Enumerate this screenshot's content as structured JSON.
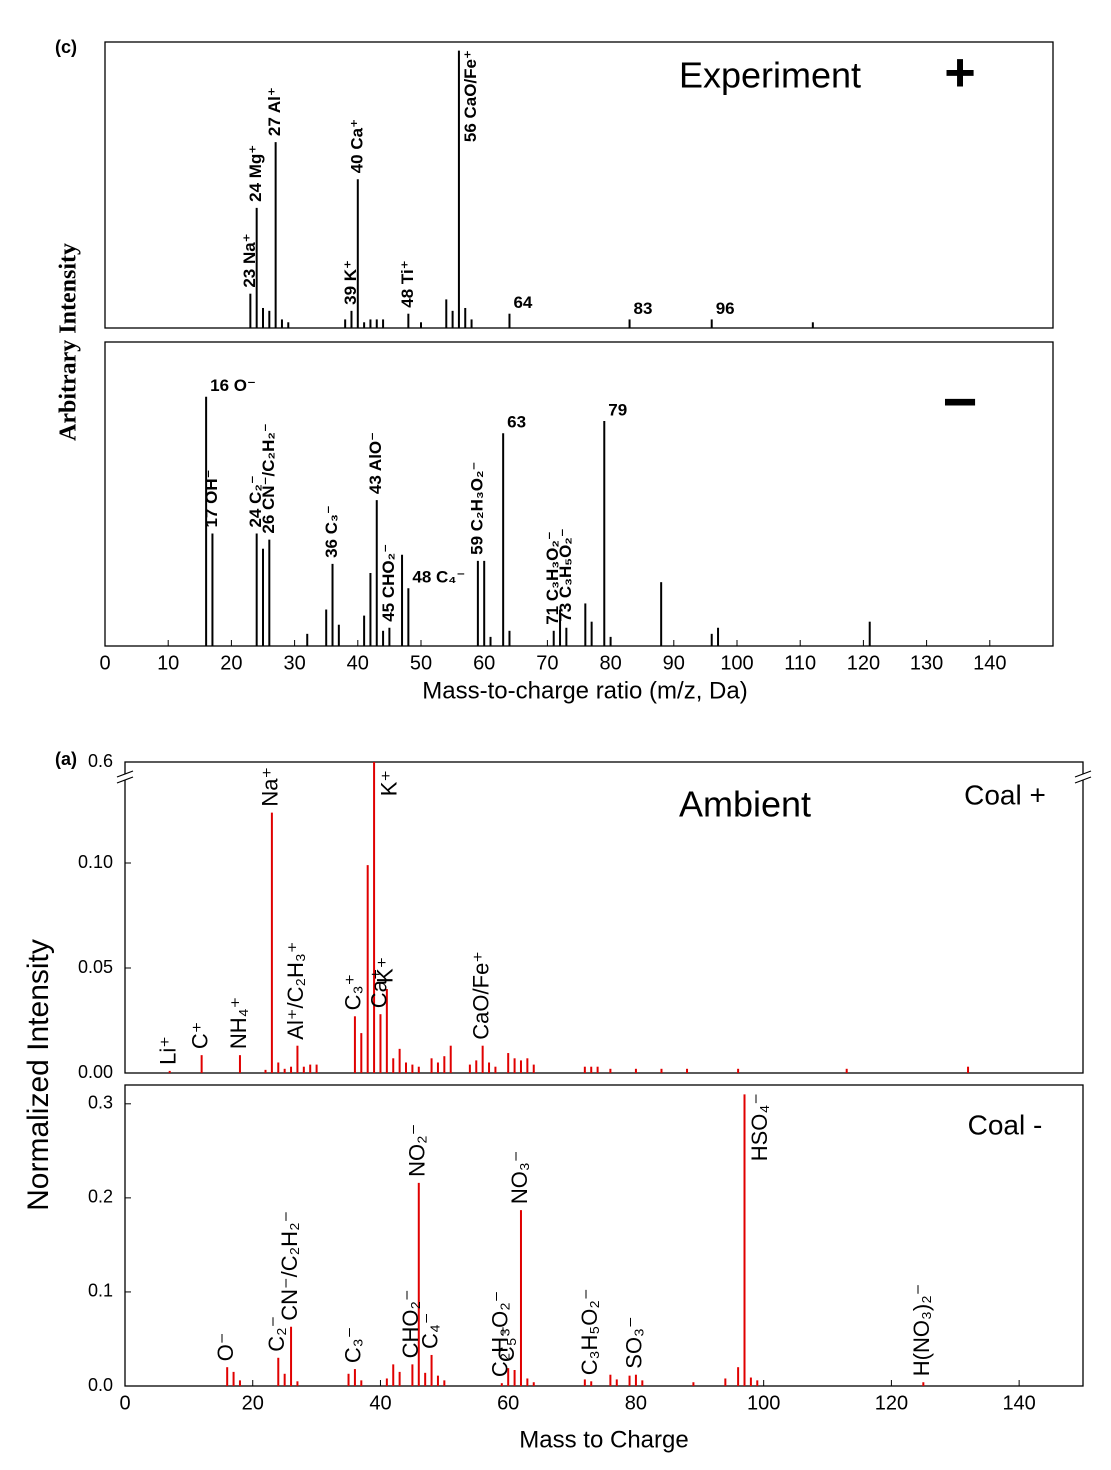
{
  "chart_data": [
    {
      "type": "stem",
      "panel_label": "(c)",
      "title": "Experiment",
      "polarity": "+",
      "ylabel": "Arbitrary Intensity",
      "color": "#000000",
      "xlim": [
        0,
        150
      ],
      "ylim": [
        0,
        100
      ],
      "x": [
        23,
        24,
        25,
        26,
        27,
        28,
        29,
        38,
        39,
        40,
        41,
        42,
        43,
        44,
        48,
        50,
        54,
        55,
        56,
        57,
        58,
        64,
        83,
        96,
        112
      ],
      "values": [
        12,
        42,
        7,
        6,
        65,
        3,
        2,
        3,
        6,
        52,
        2,
        3,
        3,
        3,
        5,
        2,
        10,
        6,
        97,
        7,
        3,
        5,
        3,
        3,
        2
      ],
      "annotations": [
        {
          "text": "23 Na⁺",
          "x": 23,
          "vertical": true
        },
        {
          "text": "24 Mg⁺",
          "x": 24,
          "vertical": true
        },
        {
          "text": "27 Al⁺",
          "x": 27,
          "vertical": true
        },
        {
          "text": "39 K⁺",
          "x": 39,
          "vertical": true
        },
        {
          "text": "40 Ca⁺",
          "x": 40,
          "vertical": true
        },
        {
          "text": "48 Ti⁺",
          "x": 48,
          "vertical": true
        },
        {
          "text": "56 CaO/Fe⁺",
          "x": 56,
          "vertical": true
        },
        {
          "text": "64",
          "x": 64,
          "vertical": false
        },
        {
          "text": "83",
          "x": 83,
          "vertical": false
        },
        {
          "text": "96",
          "x": 96,
          "vertical": false
        }
      ]
    },
    {
      "type": "stem",
      "polarity": "−",
      "xlabel": "Mass-to-charge ratio (m/z, Da)",
      "color": "#000000",
      "xlim": [
        0,
        150
      ],
      "ylim": [
        0,
        100
      ],
      "xticks": [
        0,
        10,
        20,
        30,
        40,
        50,
        60,
        70,
        80,
        90,
        100,
        110,
        120,
        130,
        140
      ],
      "x": [
        16,
        17,
        24,
        25,
        26,
        32,
        35,
        36,
        37,
        41,
        42,
        43,
        44,
        45,
        47,
        48,
        59,
        60,
        61,
        63,
        64,
        71,
        72,
        73,
        76,
        77,
        79,
        80,
        88,
        96,
        97,
        121
      ],
      "values": [
        82,
        37,
        37,
        32,
        35,
        4,
        12,
        27,
        7,
        10,
        24,
        48,
        5,
        6,
        30,
        19,
        28,
        28,
        3,
        70,
        5,
        5,
        12,
        6,
        14,
        8,
        74,
        3,
        21,
        4,
        6,
        8
      ],
      "annotations": [
        {
          "text": "16 O⁻",
          "x": 16,
          "vertical": false
        },
        {
          "text": "17 OH⁻",
          "x": 17,
          "vertical": true
        },
        {
          "text": "24 C₂⁻",
          "x": 24,
          "vertical": true
        },
        {
          "text": "26 CN⁻/C₂H₂⁻",
          "x": 26,
          "vertical": true
        },
        {
          "text": "36 C₃⁻",
          "x": 36,
          "vertical": true
        },
        {
          "text": "43 AlO⁻",
          "x": 43,
          "vertical": true
        },
        {
          "text": "45 CHO₂⁻",
          "x": 45,
          "vertical": true
        },
        {
          "text": "48 C₄⁻",
          "x": 48,
          "vertical": false
        },
        {
          "text": "59 C₂H₃O₂⁻",
          "x": 59,
          "vertical": true
        },
        {
          "text": "63",
          "x": 63,
          "vertical": false
        },
        {
          "text": "71 C₃H₃O₂⁻",
          "x": 71,
          "vertical": true
        },
        {
          "text": "73 C₃H₅O₂⁻",
          "x": 73,
          "vertical": true
        },
        {
          "text": "79",
          "x": 79,
          "vertical": false
        }
      ]
    },
    {
      "type": "stem",
      "panel_label": "(a)",
      "title": "Ambient",
      "polarity": "Coal +",
      "ylabel": "Normalized Intensity",
      "color": "#e00000",
      "xlim": [
        0,
        150
      ],
      "ylim": [
        0,
        0.6
      ],
      "ybreak": [
        0.14,
        0.59
      ],
      "yticks": [
        {
          "value": 0,
          "label": "0.00"
        },
        0.05,
        {
          "value": 0.1,
          "label": "0.10"
        },
        0.6
      ],
      "x": [
        7,
        12,
        18,
        22,
        23,
        24,
        25,
        26,
        27,
        28,
        29,
        30,
        36,
        37,
        38,
        39,
        40,
        41,
        42,
        43,
        44,
        45,
        46,
        48,
        49,
        50,
        51,
        54,
        55,
        56,
        57,
        58,
        60,
        61,
        62,
        63,
        64,
        72,
        73,
        74,
        76,
        80,
        84,
        88,
        96,
        113,
        132
      ],
      "values": [
        0.001,
        0.0085,
        0.0085,
        0.0015,
        0.124,
        0.005,
        0.002,
        0.003,
        0.013,
        0.003,
        0.004,
        0.004,
        0.027,
        0.019,
        0.099,
        0.6,
        0.028,
        0.04,
        0.007,
        0.0115,
        0.005,
        0.004,
        0.003,
        0.007,
        0.005,
        0.008,
        0.013,
        0.004,
        0.006,
        0.013,
        0.005,
        0.003,
        0.0095,
        0.007,
        0.006,
        0.007,
        0.004,
        0.003,
        0.003,
        0.003,
        0.002,
        0.002,
        0.002,
        0.002,
        0.002,
        0.002,
        0.003
      ],
      "annotations": [
        {
          "text": "Li⁺",
          "x": 7,
          "vertical": true
        },
        {
          "text": "C⁺",
          "x": 12,
          "vertical": true
        },
        {
          "text": "NH₄⁺",
          "x": 18,
          "vertical": true
        },
        {
          "text": "Na⁺",
          "x": 23,
          "vertical": true
        },
        {
          "text": "Al⁺/C₂H₃⁺",
          "x": 27,
          "vertical": true
        },
        {
          "text": "C₃⁺",
          "x": 36,
          "vertical": true
        },
        {
          "text": "K⁺",
          "x": 39,
          "vertical": true
        },
        {
          "text": "Ca⁺",
          "x": 40,
          "vertical": true
        },
        {
          "text": "K⁺",
          "x": 41,
          "vertical": true
        },
        {
          "text": "CaO/Fe⁺",
          "x": 56,
          "vertical": true
        }
      ]
    },
    {
      "type": "stem",
      "polarity": "Coal -",
      "xlabel": "Mass to Charge",
      "color": "#e00000",
      "xlim": [
        0,
        150
      ],
      "ylim": [
        0,
        0.32
      ],
      "xticks": [
        0,
        20,
        40,
        60,
        80,
        100,
        120,
        140
      ],
      "yticks": [
        {
          "value": 0,
          "label": "0.0"
        },
        0.1,
        0.2,
        0.3
      ],
      "x": [
        16,
        17,
        18,
        24,
        25,
        26,
        27,
        35,
        36,
        37,
        41,
        42,
        43,
        45,
        46,
        47,
        48,
        49,
        50,
        59,
        60,
        61,
        62,
        63,
        64,
        72,
        73,
        76,
        77,
        79,
        80,
        81,
        89,
        94,
        96,
        97,
        98,
        99,
        125
      ],
      "values": [
        0.02,
        0.015,
        0.006,
        0.03,
        0.013,
        0.063,
        0.005,
        0.013,
        0.018,
        0.006,
        0.008,
        0.023,
        0.015,
        0.023,
        0.216,
        0.014,
        0.033,
        0.011,
        0.006,
        0.003,
        0.019,
        0.017,
        0.187,
        0.008,
        0.004,
        0.007,
        0.005,
        0.012,
        0.007,
        0.011,
        0.012,
        0.006,
        0.004,
        0.008,
        0.02,
        0.31,
        0.009,
        0.006,
        0.004
      ],
      "annotations": [
        {
          "text": "O⁻",
          "x": 16,
          "vertical": true
        },
        {
          "text": "C₂⁻",
          "x": 24,
          "vertical": true
        },
        {
          "text": "CN⁻/C₂H₂⁻",
          "x": 26,
          "vertical": true
        },
        {
          "text": "C₃⁻",
          "x": 36,
          "vertical": true
        },
        {
          "text": "CHO₂⁻",
          "x": 45,
          "vertical": true
        },
        {
          "text": "NO₂⁻",
          "x": 46,
          "vertical": true
        },
        {
          "text": "C₄⁻",
          "x": 48,
          "vertical": true
        },
        {
          "text": "C₂H₃O₂⁻",
          "x": 59,
          "vertical": true
        },
        {
          "text": "C₅⁻",
          "x": 60,
          "vertical": true
        },
        {
          "text": "NO₃⁻",
          "x": 62,
          "vertical": true
        },
        {
          "text": "C₃H₅O₂⁻",
          "x": 73,
          "vertical": true
        },
        {
          "text": "SO₃⁻",
          "x": 80,
          "vertical": true
        },
        {
          "text": "HSO₄⁻",
          "x": 97,
          "vertical": true
        },
        {
          "text": "H(NO₃)₂⁻",
          "x": 125,
          "vertical": true
        }
      ]
    }
  ]
}
